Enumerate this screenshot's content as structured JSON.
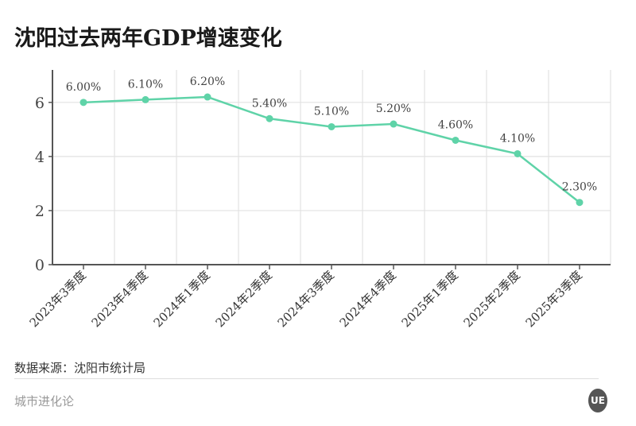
{
  "chart_data": {
    "type": "line",
    "title": "沈阳过去两年GDP增速变化",
    "categories": [
      "2023年3季度",
      "2023年4季度",
      "2024年1季度",
      "2024年2季度",
      "2024年3季度",
      "2024年4季度",
      "2025年1季度",
      "2025年2季度",
      "2025年3季度"
    ],
    "values": [
      6.0,
      6.1,
      6.2,
      5.4,
      5.1,
      5.2,
      4.6,
      4.1,
      2.3
    ],
    "data_labels": [
      "6.00%",
      "6.10%",
      "6.20%",
      "5.40%",
      "5.10%",
      "5.20%",
      "4.60%",
      "4.10%",
      "2.30%"
    ],
    "xlabel": "",
    "ylabel": "",
    "ylim": [
      0,
      7.2
    ],
    "yticks": [
      0,
      2,
      4,
      6
    ],
    "grid": true,
    "line_color": "#5fd3a8"
  },
  "source": "数据来源：沈阳市统计局",
  "brand": "城市进化论",
  "logo_text": "UE"
}
